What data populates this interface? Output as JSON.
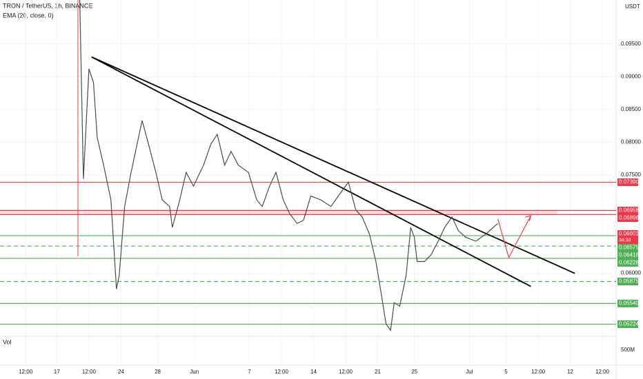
{
  "chart_data": {
    "type": "line",
    "title": "TRON / TetherUS, 1h, BINANCE",
    "indicator": "EMA (20, close, 0)",
    "currency": "USDT",
    "volume_label": "Vol",
    "volume_tick": "500M",
    "color": "#4a4a4a",
    "x": [
      19.5,
      19.9,
      20.5,
      21.0,
      21.4,
      22.1,
      22.9,
      23.5,
      23.8,
      24.4,
      25.1,
      25.9,
      26.3,
      27.0,
      27.8,
      28.5,
      29.3,
      29.6,
      30.4,
      31.1,
      31.9,
      33.0,
      33.8,
      34.5,
      35.3,
      36.0,
      36.8,
      37.9,
      38.8,
      39.4,
      40.2,
      40.9,
      41.7,
      42.4,
      43.2,
      43.9,
      44.7,
      45.8,
      46.9,
      47.7,
      48.8,
      49.6,
      50.3,
      51.1,
      51.8,
      52.3,
      52.9,
      53.4,
      53.8,
      54.4,
      55.1,
      55.6,
      56.0,
      56.3,
      57.1,
      57.8,
      58.6,
      59.3,
      60.1,
      60.8,
      61.6,
      62.7,
      63.8,
      64.6,
      65.1
    ],
    "values": [
      0.1017,
      0.0744,
      0.0912,
      0.0891,
      0.0807,
      0.0765,
      0.0712,
      0.0576,
      0.0597,
      0.0702,
      0.0754,
      0.0807,
      0.0833,
      0.0797,
      0.0754,
      0.0712,
      0.0702,
      0.067,
      0.0712,
      0.0754,
      0.0733,
      0.0765,
      0.0797,
      0.0812,
      0.0765,
      0.0786,
      0.0765,
      0.0754,
      0.0712,
      0.0702,
      0.0733,
      0.0754,
      0.0712,
      0.0691,
      0.0676,
      0.0681,
      0.0718,
      0.0712,
      0.0702,
      0.0718,
      0.0739,
      0.0697,
      0.0686,
      0.066,
      0.0618,
      0.0576,
      0.0523,
      0.0513,
      0.0555,
      0.055,
      0.0597,
      0.067,
      0.0655,
      0.0618,
      0.0618,
      0.0628,
      0.0649,
      0.067,
      0.0686,
      0.0665,
      0.0655,
      0.0649,
      0.066,
      0.067,
      0.0676
    ],
    "xlim": [
      10.8,
      78.0
    ],
    "ylim": [
      0.0505,
      0.1017
    ],
    "yticks": [
      {
        "value": 0.095,
        "label": "0.09500"
      },
      {
        "value": 0.09,
        "label": "0.09000"
      },
      {
        "value": 0.085,
        "label": "0.08500"
      },
      {
        "value": 0.08,
        "label": "0.08000"
      },
      {
        "value": 0.075,
        "label": "0.07500"
      },
      {
        "value": 0.06,
        "label": "0.06000"
      }
    ],
    "xticks": [
      {
        "value": 13.6,
        "label": "12:00"
      },
      {
        "value": 17,
        "label": "17"
      },
      {
        "value": 20.5,
        "label": "12:00"
      },
      {
        "value": 24,
        "label": "24"
      },
      {
        "value": 28,
        "label": "28"
      },
      {
        "value": 32,
        "label": "Jun"
      },
      {
        "value": 38,
        "label": "7"
      },
      {
        "value": 41.5,
        "label": "12:00"
      },
      {
        "value": 45,
        "label": "14"
      },
      {
        "value": 48.5,
        "label": "12:00"
      },
      {
        "value": 52,
        "label": "21"
      },
      {
        "value": 56,
        "label": "25"
      },
      {
        "value": 62,
        "label": "Jul"
      },
      {
        "value": 66,
        "label": "5"
      },
      {
        "value": 69.5,
        "label": "12:00"
      },
      {
        "value": 73,
        "label": "12"
      },
      {
        "value": 76.5,
        "label": "12:00"
      }
    ],
    "levels": [
      {
        "value": 0.0739,
        "label": "0.07390",
        "color": "#f23645",
        "dashed": false
      },
      {
        "value": 0.06958,
        "label": "0.06958",
        "color": "#f23645",
        "dashed": false
      },
      {
        "value": 0.06896,
        "label": "0.06896",
        "color": "#f23645",
        "dashed": false
      },
      {
        "value": 0.06575,
        "label": "0.06575",
        "color": "#4caf50",
        "dashed": false
      },
      {
        "value": 0.06416,
        "label": "0.06416",
        "color": "#4caf50",
        "dashed": true
      },
      {
        "value": 0.06228,
        "label": "0.06228",
        "color": "#4caf50",
        "dashed": false
      },
      {
        "value": 0.05875,
        "label": "0.05875",
        "color": "#4caf50",
        "dashed": true
      },
      {
        "value": 0.0554,
        "label": "0.05540",
        "color": "#4caf50",
        "dashed": false
      },
      {
        "value": 0.05224,
        "label": "0.05224",
        "color": "#4caf50",
        "dashed": false
      }
    ],
    "current_price": {
      "value": 0.06601,
      "label": "0.06601",
      "countdown": "34:34",
      "color": "#f23645"
    },
    "trendlines": [
      {
        "x": [
          20.8,
          73.5
        ],
        "values": [
          0.093,
          0.06
        ]
      },
      {
        "x": [
          20.8,
          68.7
        ],
        "values": [
          0.093,
          0.058
        ]
      }
    ],
    "projection": {
      "x": [
        65.1,
        66.3,
        68.7
      ],
      "values": [
        0.0683,
        0.0624,
        0.0688
      ],
      "color": "#f23645"
    },
    "vline": {
      "x": 19.3,
      "color": "#f23645"
    }
  }
}
